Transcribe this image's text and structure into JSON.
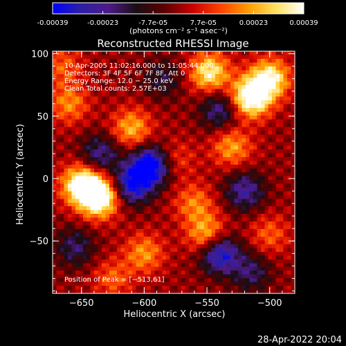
{
  "colorbar": {
    "tick_labels": [
      "-0.00039",
      "-0.00023",
      "-7.7e-05",
      "7.7e-05",
      "0.00023",
      "0.00039"
    ],
    "unit_label": "(photons cm⁻² s⁻¹ asec⁻²)",
    "colors": [
      "#0000ff",
      "#2c1fa6",
      "#4d1a8a",
      "#1a0d14",
      "#5a0000",
      "#c80000",
      "#ff4000",
      "#ff9a00",
      "#ffe060",
      "#ffffff"
    ]
  },
  "chart_data": {
    "type": "heatmap",
    "title": "Reconstructed RHESSI Image",
    "xlabel": "Heliocentric X (arcsec)",
    "ylabel": "Heliocentric Y (arcsec)",
    "xlim": [
      -673,
      -480
    ],
    "ylim": [
      -92,
      102
    ],
    "x_ticks": [
      -650,
      -600,
      -550,
      -500
    ],
    "x_tick_labels": [
      "−650",
      "−600",
      "−550",
      "−500"
    ],
    "y_ticks": [
      -50,
      0,
      50,
      100
    ],
    "y_tick_labels": [
      "−50",
      "0",
      "50",
      "100"
    ],
    "annotations": [
      "10-Apr-2005 11:02:16.000 to 11:05:44.000",
      "Detectors: 3F 4F 5F 6F 7F 8F, Att 0",
      "Energy Range: 12.0 − 25.0 keV",
      "Clean     Total counts: 2.57E+03"
    ],
    "peak_label": "Position of Peak = [−513,61]",
    "peak_position": [
      -513,
      61
    ],
    "value_range": [
      -0.00039,
      0.00039
    ],
    "blobs": [
      {
        "x": -636,
        "y": -15,
        "value": 0.00039
      },
      {
        "x": -650,
        "y": -5,
        "value": 0.00033
      },
      {
        "x": -610,
        "y": 40,
        "value": 0.0002
      },
      {
        "x": -660,
        "y": 60,
        "value": 0.00016
      },
      {
        "x": -665,
        "y": 90,
        "value": 0.00012
      },
      {
        "x": -515,
        "y": 65,
        "value": 0.00038
      },
      {
        "x": -500,
        "y": 80,
        "value": 0.0003
      },
      {
        "x": -548,
        "y": 85,
        "value": 0.00028
      },
      {
        "x": -530,
        "y": 25,
        "value": 0.00018
      },
      {
        "x": -550,
        "y": -45,
        "value": 0.00022
      },
      {
        "x": -560,
        "y": -20,
        "value": 0.00015
      },
      {
        "x": -500,
        "y": -45,
        "value": 0.00012
      },
      {
        "x": -600,
        "y": -60,
        "value": 0.00017
      },
      {
        "x": -625,
        "y": -80,
        "value": 0.00012
      },
      {
        "x": -575,
        "y": 15,
        "value": 0.0001
      },
      {
        "x": -595,
        "y": 10,
        "value": -0.00036
      },
      {
        "x": -610,
        "y": -5,
        "value": -0.00028
      },
      {
        "x": -540,
        "y": -60,
        "value": -0.0003
      },
      {
        "x": -520,
        "y": -10,
        "value": -0.0002
      },
      {
        "x": -635,
        "y": 20,
        "value": -0.00018
      },
      {
        "x": -540,
        "y": 55,
        "value": -0.00018
      },
      {
        "x": -515,
        "y": -75,
        "value": -0.00015
      },
      {
        "x": -655,
        "y": -55,
        "value": -0.00015
      },
      {
        "x": -585,
        "y": 80,
        "value": -0.00012
      }
    ]
  },
  "footer": {
    "date_stamp": "28-Apr-2022 20:04"
  }
}
